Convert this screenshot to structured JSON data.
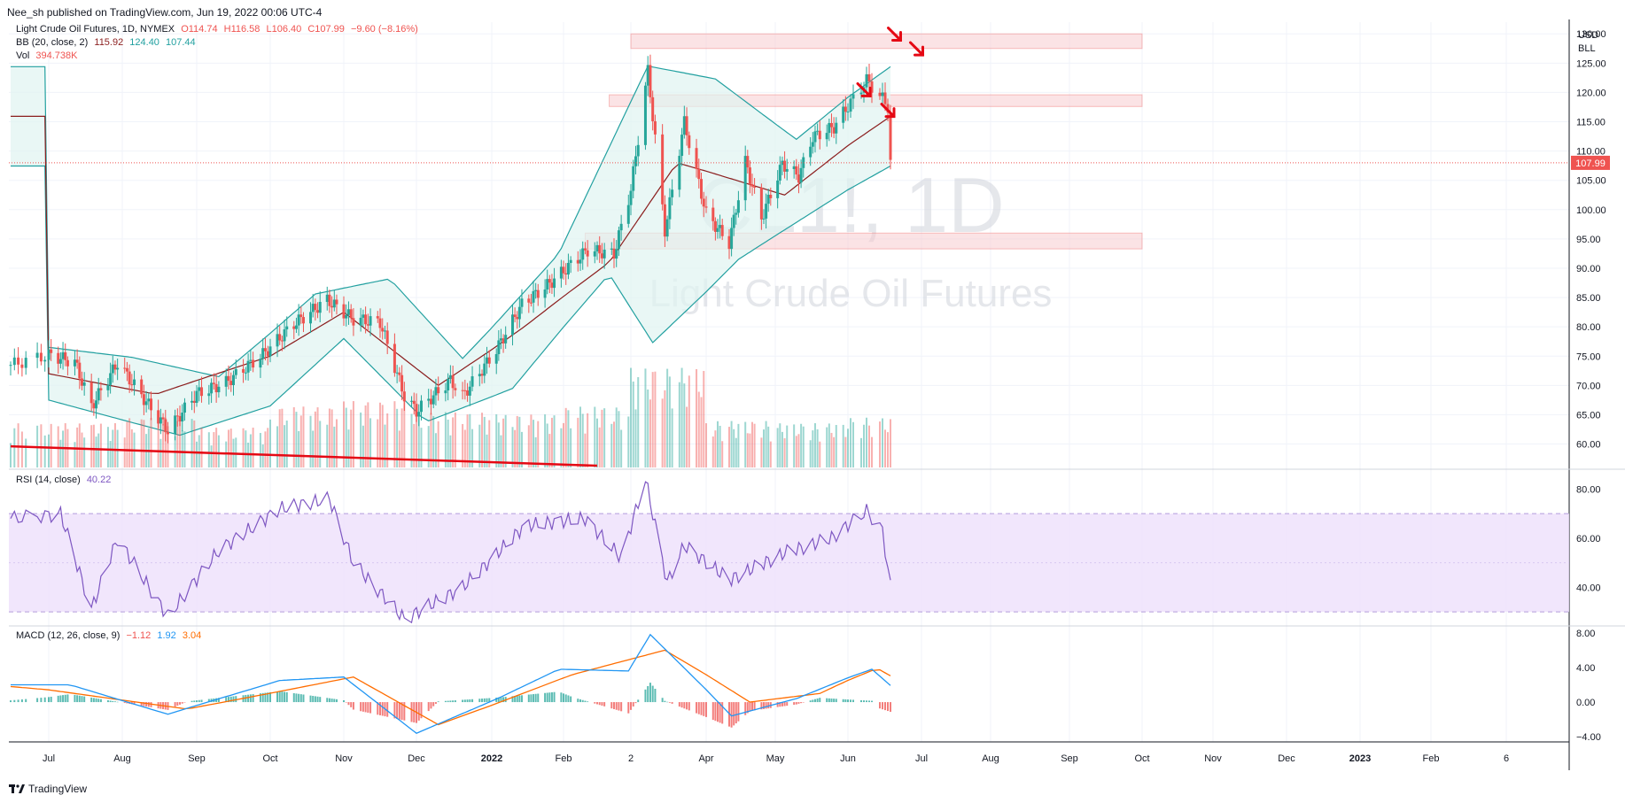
{
  "header": {
    "publisher": "Nee_sh published on TradingView.com, Jun 19, 2022 00:06 UTC-4"
  },
  "legend": {
    "ohlc": {
      "title": "Light Crude Oil Futures, 1D, NYMEX",
      "o": "O114.74",
      "h": "H116.58",
      "l": "L106.40",
      "c": "C107.99",
      "change": "−9.60 (−8.16%)"
    },
    "bb": {
      "label": "BB (20, close, 2)",
      "basis": "115.92",
      "upper": "124.40",
      "lower": "107.44"
    },
    "vol": {
      "label": "Vol",
      "value": "394.738K"
    },
    "rsi": {
      "label": "RSI (14, close)",
      "value": "40.22"
    },
    "macd": {
      "label": "MACD (12, 26, close, 9)",
      "hist": "−1.12",
      "macd": "1.92",
      "signal": "3.04"
    }
  },
  "price_axis": {
    "unit_top": "USD",
    "unit_bottom": "BLL",
    "current_price": "107.99"
  },
  "watermark": {
    "symbol": "CL1!, 1D",
    "name": "Light Crude Oil Futures"
  },
  "footer": {
    "brand": "TradingView"
  },
  "colors": {
    "up": "#26a69a",
    "down": "#ef5350",
    "bb_basis": "#8b1e1e",
    "bb_band": "#22a0a0",
    "bb_fill": "#e0f3f1",
    "rsi_line": "#7e57c2",
    "rsi_fill": "#ede0fb",
    "macd_line": "#2196f3",
    "signal_line": "#ff6d00",
    "zone": "#f7c8cb",
    "arrow": "#e50914"
  },
  "chart_data": [
    {
      "type": "candlestick",
      "title": "Light Crude Oil Futures, 1D, NYMEX",
      "x_ticks": [
        "Jul",
        "Aug",
        "Sep",
        "Oct",
        "Nov",
        "Dec",
        "2022",
        "Feb",
        "2",
        "Apr",
        "May",
        "Jun",
        "Jul",
        "Aug",
        "Sep",
        "Oct",
        "Nov",
        "Dec",
        "2023",
        "Feb",
        "6"
      ],
      "y_ticks": [
        "60.00",
        "65.00",
        "70.00",
        "75.00",
        "80.00",
        "85.00",
        "90.00",
        "95.00",
        "100.00",
        "105.00",
        "110.00",
        "115.00",
        "120.00",
        "125.00",
        "130.00"
      ],
      "ylim": [
        56,
        132
      ],
      "close_series": [
        {
          "date": "2021-06-21",
          "close": 73.5
        },
        {
          "date": "2021-07-01",
          "close": 75.2
        },
        {
          "date": "2021-07-12",
          "close": 74.0
        },
        {
          "date": "2021-07-19",
          "close": 66.4
        },
        {
          "date": "2021-07-30",
          "close": 73.9
        },
        {
          "date": "2021-08-09",
          "close": 68.3
        },
        {
          "date": "2021-08-20",
          "close": 62.3
        },
        {
          "date": "2021-09-01",
          "close": 68.6
        },
        {
          "date": "2021-09-13",
          "close": 70.5
        },
        {
          "date": "2021-09-28",
          "close": 75.3
        },
        {
          "date": "2021-10-11",
          "close": 80.5
        },
        {
          "date": "2021-10-25",
          "close": 84.6
        },
        {
          "date": "2021-11-05",
          "close": 81.3
        },
        {
          "date": "2021-11-16",
          "close": 80.8
        },
        {
          "date": "2021-11-26",
          "close": 68.2
        },
        {
          "date": "2021-12-01",
          "close": 65.6
        },
        {
          "date": "2021-12-15",
          "close": 70.9
        },
        {
          "date": "2021-12-20",
          "close": 68.2
        },
        {
          "date": "2022-01-03",
          "close": 76.1
        },
        {
          "date": "2022-01-14",
          "close": 83.8
        },
        {
          "date": "2022-01-26",
          "close": 87.4
        },
        {
          "date": "2022-02-11",
          "close": 93.1
        },
        {
          "date": "2022-02-22",
          "close": 92.4
        },
        {
          "date": "2022-03-01",
          "close": 103.4
        },
        {
          "date": "2022-03-08",
          "close": 123.7
        },
        {
          "date": "2022-03-15",
          "close": 96.4
        },
        {
          "date": "2022-03-23",
          "close": 114.9
        },
        {
          "date": "2022-04-01",
          "close": 99.3
        },
        {
          "date": "2022-04-11",
          "close": 94.3
        },
        {
          "date": "2022-04-18",
          "close": 108.2
        },
        {
          "date": "2022-04-25",
          "close": 98.5
        },
        {
          "date": "2022-05-04",
          "close": 107.8
        },
        {
          "date": "2022-05-11",
          "close": 105.7
        },
        {
          "date": "2022-05-17",
          "close": 112.4
        },
        {
          "date": "2022-05-26",
          "close": 114.1
        },
        {
          "date": "2022-06-03",
          "close": 118.9
        },
        {
          "date": "2022-06-08",
          "close": 122.1
        },
        {
          "date": "2022-06-14",
          "close": 118.9
        },
        {
          "date": "2022-06-16",
          "close": 117.6
        },
        {
          "date": "2022-06-17",
          "close": 107.99
        }
      ],
      "bollinger": {
        "upper": [
          {
            "date": "2021-07-01",
            "value": 76.5
          },
          {
            "date": "2021-08-05",
            "value": 74.8
          },
          {
            "date": "2021-09-10",
            "value": 71.5
          },
          {
            "date": "2021-10-20",
            "value": 85.6
          },
          {
            "date": "2021-11-20",
            "value": 88.2
          },
          {
            "date": "2021-12-20",
            "value": 74.6
          },
          {
            "date": "2022-01-30",
            "value": 92.5
          },
          {
            "date": "2022-03-08",
            "value": 124.5
          },
          {
            "date": "2022-04-05",
            "value": 122.3
          },
          {
            "date": "2022-05-10",
            "value": 112.0
          },
          {
            "date": "2022-06-17",
            "value": 124.4
          }
        ],
        "basis": [
          {
            "date": "2021-07-01",
            "value": 72.0
          },
          {
            "date": "2021-08-15",
            "value": 68.5
          },
          {
            "date": "2021-10-01",
            "value": 75.0
          },
          {
            "date": "2021-11-01",
            "value": 82.5
          },
          {
            "date": "2021-12-10",
            "value": 70.0
          },
          {
            "date": "2022-01-15",
            "value": 80.0
          },
          {
            "date": "2022-02-20",
            "value": 91.0
          },
          {
            "date": "2022-03-20",
            "value": 108.0
          },
          {
            "date": "2022-05-05",
            "value": 102.5
          },
          {
            "date": "2022-06-17",
            "value": 115.92
          }
        ],
        "lower": [
          {
            "date": "2021-07-01",
            "value": 67.5
          },
          {
            "date": "2021-08-25",
            "value": 61.5
          },
          {
            "date": "2021-10-01",
            "value": 66.5
          },
          {
            "date": "2021-11-01",
            "value": 78.0
          },
          {
            "date": "2021-12-05",
            "value": 63.8
          },
          {
            "date": "2022-01-10",
            "value": 69.5
          },
          {
            "date": "2022-02-20",
            "value": 89.0
          },
          {
            "date": "2022-03-10",
            "value": 77.3
          },
          {
            "date": "2022-04-15",
            "value": 91.5
          },
          {
            "date": "2022-06-17",
            "value": 107.44
          }
        ]
      },
      "zones": [
        {
          "from_date": "2022-03-01",
          "to_date": "2022-10-01",
          "low": 127.5,
          "high": 130.0
        },
        {
          "from_date": "2022-02-20",
          "to_date": "2022-10-01",
          "low": 117.6,
          "high": 119.6
        },
        {
          "from_date": "2022-02-10",
          "to_date": "2022-10-01",
          "low": 93.3,
          "high": 96.0
        }
      ],
      "trendline": {
        "from_date": "2021-06-21",
        "from_value": 59.6,
        "to_date": "2022-02-15",
        "to_value": 56.3
      },
      "arrows": [
        {
          "date": "2022-06-20",
          "value": 129.5
        },
        {
          "date": "2022-06-30",
          "value": 127.0
        },
        {
          "date": "2022-06-08",
          "value": 120.0
        },
        {
          "date": "2022-06-17",
          "value": 116.5
        }
      ]
    },
    {
      "type": "bar",
      "title": "Vol",
      "last_value": "394.738K",
      "volume_by_month": [
        {
          "month": "2021-07",
          "relative": 0.4
        },
        {
          "month": "2021-08",
          "relative": 0.45
        },
        {
          "month": "2021-09",
          "relative": 0.36
        },
        {
          "month": "2021-10",
          "relative": 0.55
        },
        {
          "month": "2021-11",
          "relative": 0.6
        },
        {
          "month": "2021-12",
          "relative": 0.5
        },
        {
          "month": "2022-01",
          "relative": 0.48
        },
        {
          "month": "2022-02",
          "relative": 0.55
        },
        {
          "month": "2022-03",
          "relative": 0.9
        },
        {
          "month": "2022-04",
          "relative": 0.42
        },
        {
          "month": "2022-05",
          "relative": 0.4
        },
        {
          "month": "2022-06",
          "relative": 0.45
        }
      ]
    },
    {
      "type": "line",
      "title": "RSI (14, close)",
      "y_ticks": [
        "40.00",
        "60.00",
        "80.00"
      ],
      "ylim": [
        25,
        87
      ],
      "bands": {
        "upper": 70,
        "middle": 50,
        "lower": 30
      },
      "points": [
        {
          "date": "2021-06-21",
          "value": 68
        },
        {
          "date": "2021-07-06",
          "value": 70
        },
        {
          "date": "2021-07-19",
          "value": 31
        },
        {
          "date": "2021-07-30",
          "value": 60
        },
        {
          "date": "2021-08-20",
          "value": 28
        },
        {
          "date": "2021-09-10",
          "value": 55
        },
        {
          "date": "2021-10-05",
          "value": 72
        },
        {
          "date": "2021-10-26",
          "value": 76
        },
        {
          "date": "2021-11-05",
          "value": 50
        },
        {
          "date": "2021-11-26",
          "value": 27
        },
        {
          "date": "2021-12-20",
          "value": 40
        },
        {
          "date": "2022-01-15",
          "value": 65
        },
        {
          "date": "2022-02-10",
          "value": 68
        },
        {
          "date": "2022-02-25",
          "value": 52
        },
        {
          "date": "2022-03-07",
          "value": 84
        },
        {
          "date": "2022-03-16",
          "value": 42
        },
        {
          "date": "2022-03-23",
          "value": 57
        },
        {
          "date": "2022-04-11",
          "value": 43
        },
        {
          "date": "2022-05-05",
          "value": 54
        },
        {
          "date": "2022-05-25",
          "value": 60
        },
        {
          "date": "2022-06-08",
          "value": 71
        },
        {
          "date": "2022-06-14",
          "value": 63
        },
        {
          "date": "2022-06-17",
          "value": 40.22
        }
      ]
    },
    {
      "type": "line",
      "title": "MACD (12, 26, close, 9)",
      "y_ticks": [
        "−4.00",
        "0.00",
        "4.00",
        "8.00"
      ],
      "ylim": [
        -4.6,
        8.6
      ],
      "macd": [
        {
          "date": "2021-06-21",
          "value": 2.0
        },
        {
          "date": "2021-07-10",
          "value": 2.0
        },
        {
          "date": "2021-08-20",
          "value": -1.4
        },
        {
          "date": "2021-10-05",
          "value": 2.5
        },
        {
          "date": "2021-11-01",
          "value": 2.9
        },
        {
          "date": "2021-12-01",
          "value": -3.6
        },
        {
          "date": "2022-01-05",
          "value": 0.6
        },
        {
          "date": "2022-01-30",
          "value": 3.8
        },
        {
          "date": "2022-02-28",
          "value": 3.6
        },
        {
          "date": "2022-03-09",
          "value": 7.8
        },
        {
          "date": "2022-04-12",
          "value": -1.6
        },
        {
          "date": "2022-05-10",
          "value": 0.4
        },
        {
          "date": "2022-06-10",
          "value": 3.8
        },
        {
          "date": "2022-06-17",
          "value": 1.92
        }
      ],
      "signal": [
        {
          "date": "2021-06-21",
          "value": 1.8
        },
        {
          "date": "2021-08-28",
          "value": -0.8
        },
        {
          "date": "2021-11-05",
          "value": 2.9
        },
        {
          "date": "2021-12-10",
          "value": -2.6
        },
        {
          "date": "2022-02-05",
          "value": 3.2
        },
        {
          "date": "2022-03-15",
          "value": 6.0
        },
        {
          "date": "2022-04-20",
          "value": 0.0
        },
        {
          "date": "2022-05-20",
          "value": 1.0
        },
        {
          "date": "2022-06-12",
          "value": 3.9
        },
        {
          "date": "2022-06-17",
          "value": 3.04
        }
      ],
      "histogram_last": -1.12
    }
  ]
}
